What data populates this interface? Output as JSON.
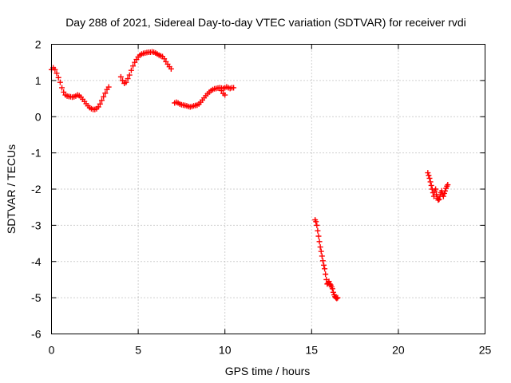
{
  "chart_data": {
    "type": "scatter",
    "title": "Day 288 of 2021, Sidereal Day-to-day VTEC variation (SDTVAR) for receiver rvdi",
    "xlabel": "GPS time / hours",
    "ylabel": "SDTVAR / TECUs",
    "xlim": [
      0,
      25
    ],
    "ylim": [
      -6,
      2
    ],
    "xticks": [
      "0",
      "5",
      "10",
      "15",
      "20",
      "25"
    ],
    "yticks": [
      "2",
      "1",
      "0",
      "-1",
      "-2",
      "-3",
      "-4",
      "-5",
      "-6"
    ],
    "grid": true,
    "marker": "plus",
    "color": "#ff0000",
    "segments": [
      {
        "x": [
          0.0,
          0.1,
          0.2,
          0.3,
          0.4,
          0.5,
          0.6,
          0.7,
          0.8,
          0.9,
          1.0,
          1.1,
          1.2,
          1.3,
          1.4,
          1.5,
          1.6,
          1.7,
          1.8,
          1.9,
          2.0,
          2.1,
          2.2,
          2.3,
          2.4,
          2.5,
          2.6,
          2.7,
          2.8,
          2.9,
          3.0,
          3.1,
          3.2,
          3.3
        ],
        "y": [
          1.3,
          1.35,
          1.3,
          1.2,
          1.08,
          0.95,
          0.8,
          0.68,
          0.6,
          0.57,
          0.56,
          0.55,
          0.54,
          0.55,
          0.57,
          0.6,
          0.58,
          0.54,
          0.48,
          0.42,
          0.36,
          0.3,
          0.25,
          0.22,
          0.2,
          0.2,
          0.22,
          0.27,
          0.35,
          0.45,
          0.55,
          0.65,
          0.75,
          0.82
        ]
      },
      {
        "x": [
          4.0,
          4.1,
          4.2,
          4.3,
          4.4,
          4.5,
          4.6,
          4.7,
          4.8,
          4.9,
          5.0,
          5.1,
          5.2,
          5.3,
          5.4,
          5.5,
          5.6,
          5.7,
          5.8,
          5.9,
          6.0,
          6.1,
          6.2,
          6.3,
          6.4,
          6.5,
          6.6,
          6.7,
          6.8,
          6.9
        ],
        "y": [
          1.1,
          1.0,
          0.92,
          0.95,
          1.05,
          1.15,
          1.28,
          1.4,
          1.5,
          1.58,
          1.65,
          1.7,
          1.73,
          1.75,
          1.76,
          1.77,
          1.78,
          1.78,
          1.79,
          1.78,
          1.76,
          1.73,
          1.7,
          1.68,
          1.66,
          1.6,
          1.52,
          1.45,
          1.38,
          1.32
        ]
      },
      {
        "x": [
          7.1,
          7.2,
          7.3,
          7.4,
          7.5,
          7.6,
          7.7,
          7.8,
          7.9,
          8.0,
          8.1,
          8.2,
          8.3,
          8.4,
          8.5,
          8.6,
          8.7,
          8.8,
          8.9,
          9.0,
          9.1,
          9.2,
          9.3,
          9.4,
          9.5,
          9.6,
          9.7,
          9.8,
          9.9,
          10.0,
          10.1,
          10.2,
          10.3,
          10.4,
          10.5,
          9.8,
          9.9,
          10.0
        ],
        "y": [
          0.38,
          0.4,
          0.38,
          0.35,
          0.33,
          0.32,
          0.31,
          0.3,
          0.28,
          0.27,
          0.28,
          0.3,
          0.31,
          0.32,
          0.35,
          0.4,
          0.46,
          0.52,
          0.58,
          0.63,
          0.68,
          0.72,
          0.75,
          0.77,
          0.78,
          0.79,
          0.8,
          0.79,
          0.78,
          0.8,
          0.82,
          0.8,
          0.78,
          0.8,
          0.8,
          0.72,
          0.64,
          0.6
        ]
      },
      {
        "x": [
          15.2,
          15.25,
          15.3,
          15.35,
          15.4,
          15.45,
          15.5,
          15.55,
          15.6,
          15.65,
          15.7,
          15.75,
          15.8,
          15.85,
          15.9,
          15.95,
          16.0,
          16.05,
          16.1,
          16.15,
          16.2,
          16.25,
          16.3,
          16.35,
          16.4,
          16.45,
          16.5
        ],
        "y": [
          -2.85,
          -2.9,
          -3.0,
          -3.15,
          -3.3,
          -3.45,
          -3.6,
          -3.72,
          -3.85,
          -3.98,
          -4.1,
          -4.2,
          -4.35,
          -4.5,
          -4.62,
          -4.6,
          -4.55,
          -4.62,
          -4.65,
          -4.7,
          -4.75,
          -4.85,
          -4.92,
          -4.97,
          -5.0,
          -5.02,
          -5.0
        ]
      },
      {
        "x": [
          21.7,
          21.75,
          21.8,
          21.85,
          21.9,
          21.95,
          22.0,
          22.05,
          22.1,
          22.15,
          22.2,
          22.25,
          22.3,
          22.35,
          22.4,
          22.45,
          22.5,
          22.55,
          22.6,
          22.65,
          22.7,
          22.75,
          22.8,
          22.85
        ],
        "y": [
          -1.55,
          -1.62,
          -1.7,
          -1.8,
          -1.9,
          -2.0,
          -2.1,
          -2.2,
          -2.05,
          -2.0,
          -2.15,
          -2.25,
          -2.3,
          -2.28,
          -2.2,
          -2.1,
          -2.05,
          -2.15,
          -2.2,
          -2.12,
          -2.05,
          -1.98,
          -1.92,
          -1.88
        ]
      }
    ]
  }
}
